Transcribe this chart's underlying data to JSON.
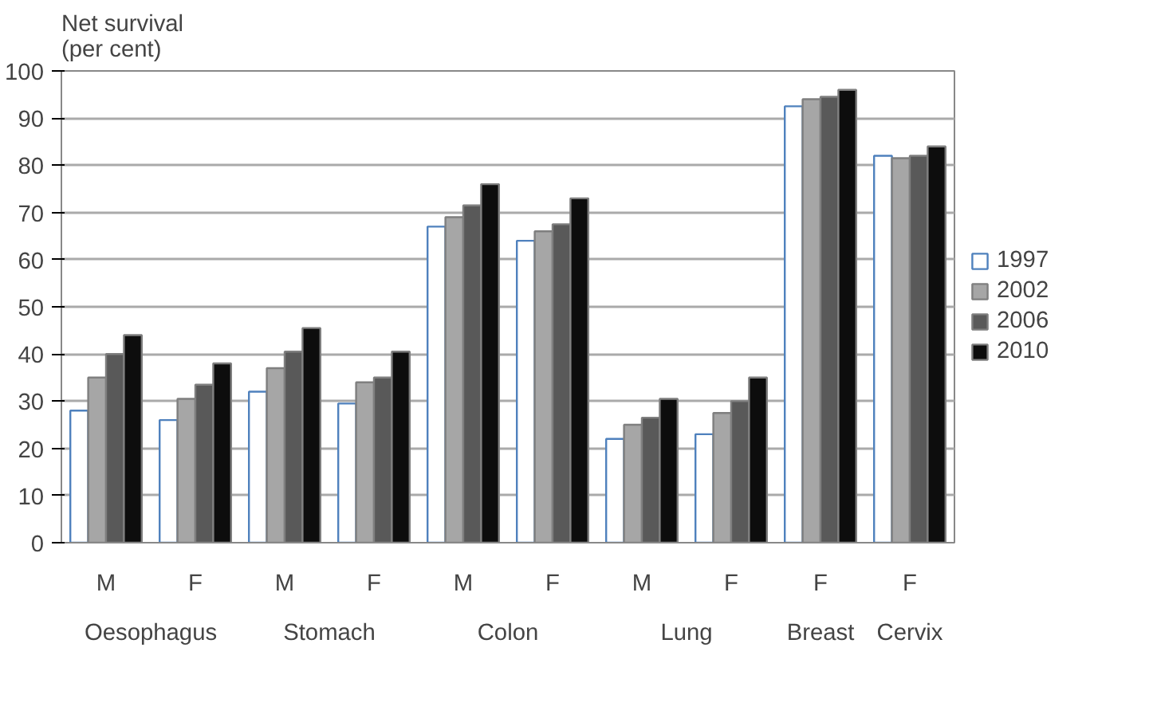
{
  "chart_data": {
    "type": "bar",
    "ylabel": "Net survival\n(per cent)",
    "categories": [
      "M",
      "F",
      "M",
      "F",
      "M",
      "F",
      "M",
      "F",
      "F",
      "F"
    ],
    "annotations": [
      "Oesophagus",
      "Stomach",
      "Colon",
      "Lung",
      "Breast",
      "Cervix"
    ],
    "series": [
      {
        "name": "1997",
        "color": "#ffffff",
        "values": [
          28,
          26,
          32,
          29.5,
          67,
          64,
          22,
          23,
          92.5,
          82
        ]
      },
      {
        "name": "2002",
        "color": "#a6a6a6",
        "values": [
          35,
          30.5,
          37,
          34,
          69,
          66,
          25,
          27.5,
          94,
          81.5
        ]
      },
      {
        "name": "2006",
        "color": "#595959",
        "values": [
          40,
          33.5,
          40.5,
          35,
          71.5,
          67.5,
          26.5,
          30,
          94.5,
          82
        ]
      },
      {
        "name": "2010",
        "color": "#0d0d0d",
        "values": [
          44,
          38,
          45.5,
          40.5,
          76,
          73,
          30.5,
          35,
          96,
          84
        ]
      }
    ],
    "ylim": [
      0,
      100
    ],
    "yticks": [
      0,
      10,
      20,
      30,
      40,
      50,
      60,
      70,
      80,
      90,
      100
    ],
    "grid": "y",
    "legend": "right"
  }
}
